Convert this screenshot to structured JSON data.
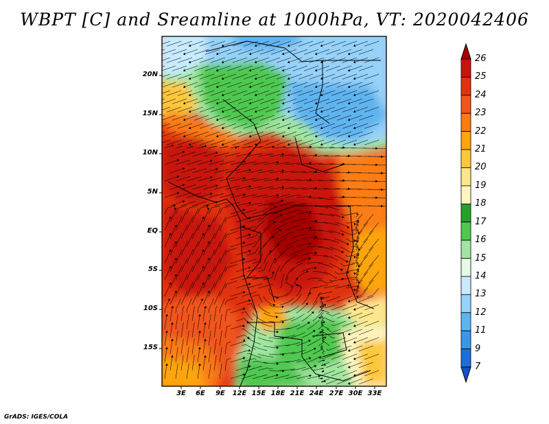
{
  "title": "WBPT [C] and Sreamline at 1000hPa, VT: 2020042406",
  "footer": "GrADS: IGES/COLA",
  "lat_labels": [
    "20N",
    "15N",
    "10N",
    "5N",
    "EQ",
    "5S",
    "10S",
    "15S"
  ],
  "lon_labels": [
    "3E",
    "6E",
    "9E",
    "12E",
    "15E",
    "18E",
    "21E",
    "24E",
    "27E",
    "30E",
    "33E"
  ],
  "colorbar": {
    "labels": [
      "26",
      "25",
      "24",
      "23",
      "22",
      "21",
      "20",
      "19",
      "18",
      "17",
      "16",
      "15",
      "14",
      "13",
      "12",
      "11",
      "9",
      "7"
    ],
    "colors": [
      "#a50000",
      "#c8140a",
      "#e1320f",
      "#f0551e",
      "#fa7d14",
      "#fca50f",
      "#fdc83c",
      "#fde68c",
      "#fff5c0",
      "#28a028",
      "#50c850",
      "#a0e6a0",
      "#e6fae6",
      "#c8ebff",
      "#96d2fa",
      "#5fb4f0",
      "#3c96e6",
      "#1e6ed7",
      "#1450c8"
    ]
  },
  "colors": {
    "background": "#ffffff",
    "streamline": "#000000",
    "border": "#000000"
  }
}
